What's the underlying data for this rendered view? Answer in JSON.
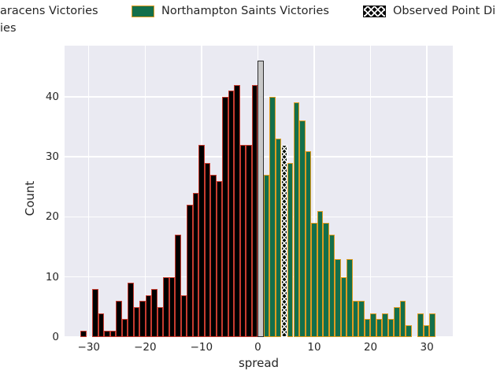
{
  "legend": {
    "entries": [
      {
        "label": "aracens Victories",
        "swatch": "none"
      },
      {
        "label": "Northampton Saints Victories",
        "swatch": "green-orange"
      },
      {
        "label": "Observed Point Di",
        "swatch": "black-white-hatch"
      }
    ],
    "row2_fragment": "ies"
  },
  "colors": {
    "plot_background": "#eaeaf2",
    "grid": "#ffffff",
    "figure_background": "#ffffff",
    "text": "#262626",
    "saracens_fill": "#000000",
    "saracens_edge": "#c83c30",
    "northampton_fill": "#136f4b",
    "northampton_edge": "#e09b20",
    "ties_fill": "#c8c8c8",
    "ties_edge": "#2e2e2e",
    "observed_fill": "#071209",
    "observed_edge": "#ffffff"
  },
  "chart_data": {
    "type": "bar",
    "subtype": "histogram",
    "xlabel": "spread",
    "ylabel": "Count",
    "xlim": [
      -34.3,
      34.6
    ],
    "ylim": [
      0,
      48.5
    ],
    "grid": "on",
    "legend_position": "top-outside",
    "x_ticks": [
      {
        "v": -30,
        "label": "−30"
      },
      {
        "v": -20,
        "label": "−20"
      },
      {
        "v": -10,
        "label": "−10"
      },
      {
        "v": 0,
        "label": "0"
      },
      {
        "v": 10,
        "label": "10"
      },
      {
        "v": 20,
        "label": "20"
      },
      {
        "v": 30,
        "label": "30"
      }
    ],
    "y_ticks": [
      {
        "v": 0,
        "label": "0"
      },
      {
        "v": 10,
        "label": "10"
      },
      {
        "v": 20,
        "label": "20"
      },
      {
        "v": 30,
        "label": "30"
      },
      {
        "v": 40,
        "label": "40"
      }
    ],
    "bin_width": 1.05,
    "series": [
      {
        "name": "Saracens Victories",
        "key": "saracens",
        "fill": "#000000",
        "edge": "#c83c30",
        "edge_width": 1,
        "start": -31.5,
        "step": 1.05,
        "counts": [
          1,
          0,
          8,
          4,
          1,
          1,
          6,
          3,
          9,
          5,
          6,
          7,
          8,
          5,
          10,
          10,
          17,
          7,
          22,
          24,
          32,
          29,
          27,
          26,
          40,
          41,
          42,
          32,
          32,
          42
        ]
      },
      {
        "name": "Ties",
        "key": "ties",
        "fill": "#c8c8c8",
        "edge": "#2e2e2e",
        "edge_width": 1,
        "start": 0,
        "step": 1.05,
        "counts": [
          46
        ]
      },
      {
        "name": "Northampton Saints Victories",
        "key": "northampton",
        "fill": "#136f4b",
        "edge": "#e09b20",
        "edge_width": 1,
        "start": 1.05,
        "step": 1.05,
        "counts": [
          27,
          40,
          33,
          0,
          29,
          39,
          36,
          31,
          19,
          21,
          19,
          17,
          13,
          10,
          13,
          6,
          6,
          3,
          4,
          3,
          4,
          3,
          5,
          6,
          2,
          0,
          4,
          2,
          4
        ]
      },
      {
        "name": "Observed Point Di",
        "key": "observed",
        "fill": "#071209",
        "edge": "#ffffff",
        "edge_width": 1.5,
        "start": 4.2,
        "step": 1.05,
        "counts": [
          32
        ]
      }
    ]
  }
}
